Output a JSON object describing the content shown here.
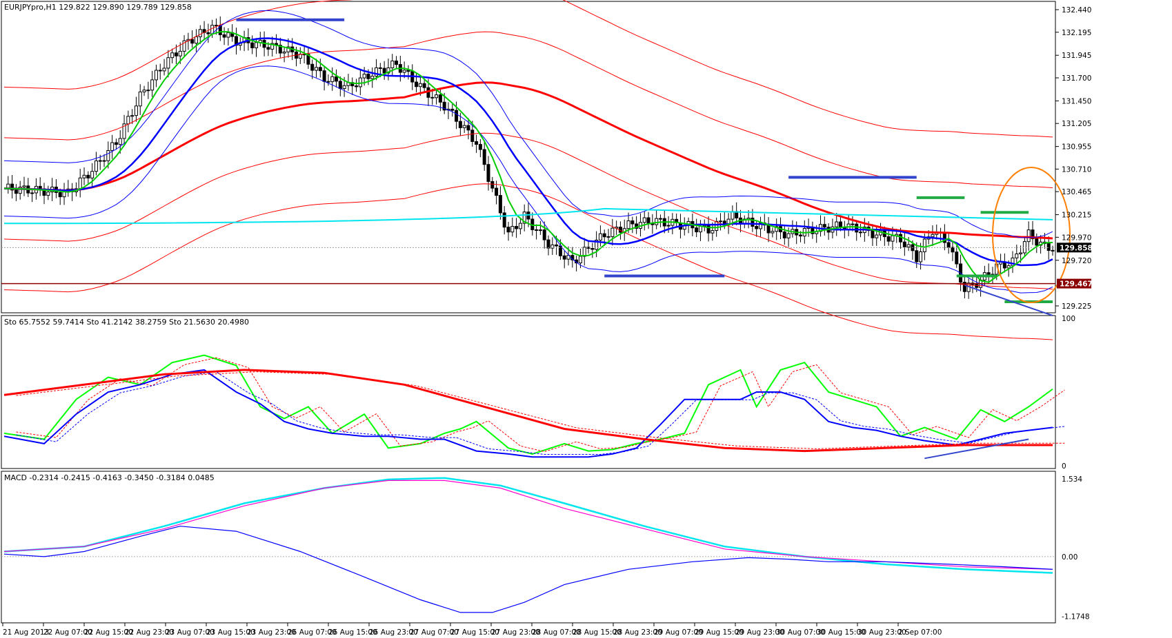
{
  "chart_data": [
    {
      "type": "candlestick",
      "title": "EURJPYpro,H1",
      "ohlc_header": "129.822 129.890 129.789 129.858",
      "price_axis_ticks": [
        "132.440",
        "132.195",
        "131.945",
        "131.700",
        "131.450",
        "131.205",
        "130.955",
        "130.710",
        "130.465",
        "130.215",
        "129.970",
        "129.720",
        "129.225"
      ],
      "ylim": [
        129.18,
        132.5
      ],
      "current_price": "129.858",
      "support_level": "129.467",
      "time_labels": [
        "21 Aug 2013",
        "22 Aug 07:00",
        "22 Aug 15:00",
        "22 Aug 23:00",
        "23 Aug 07:00",
        "23 Aug 15:00",
        "23 Aug 23:00",
        "26 Aug 07:00",
        "26 Aug 15:00",
        "26 Aug 23:00",
        "27 Aug 07:00",
        "27 Aug 15:00",
        "27 Aug 23:00",
        "28 Aug 07:00",
        "28 Aug 15:00",
        "28 Aug 23:00",
        "29 Aug 07:00",
        "29 Aug 15:00",
        "29 Aug 23:00",
        "30 Aug 07:00",
        "30 Aug 15:00",
        "30 Aug 23:00",
        "2 Sep 07:00"
      ],
      "close_path": [
        [
          0,
          130.5
        ],
        [
          8,
          130.48
        ],
        [
          16,
          130.45
        ],
        [
          22,
          130.7
        ],
        [
          28,
          131.0
        ],
        [
          34,
          131.5
        ],
        [
          40,
          131.85
        ],
        [
          46,
          132.1
        ],
        [
          52,
          132.25
        ],
        [
          58,
          132.1
        ],
        [
          66,
          132.05
        ],
        [
          74,
          131.95
        ],
        [
          80,
          131.7
        ],
        [
          86,
          131.6
        ],
        [
          92,
          131.75
        ],
        [
          98,
          131.85
        ],
        [
          104,
          131.6
        ],
        [
          110,
          131.4
        ],
        [
          114,
          131.2
        ],
        [
          118,
          131.0
        ],
        [
          122,
          130.5
        ],
        [
          126,
          130.0
        ],
        [
          130,
          130.2
        ],
        [
          136,
          129.9
        ],
        [
          142,
          129.7
        ],
        [
          146,
          129.85
        ],
        [
          150,
          130.0
        ],
        [
          156,
          130.1
        ],
        [
          162,
          130.15
        ],
        [
          170,
          130.1
        ],
        [
          176,
          130.05
        ],
        [
          182,
          130.2
        ],
        [
          188,
          130.1
        ],
        [
          196,
          130.0
        ],
        [
          202,
          130.05
        ],
        [
          210,
          130.1
        ],
        [
          218,
          130.0
        ],
        [
          224,
          129.95
        ],
        [
          228,
          129.75
        ],
        [
          232,
          130.05
        ],
        [
          236,
          129.9
        ],
        [
          240,
          129.4
        ],
        [
          244,
          129.5
        ],
        [
          248,
          129.65
        ],
        [
          252,
          129.7
        ],
        [
          256,
          130.0
        ],
        [
          260,
          129.86
        ]
      ],
      "annotations": [
        "horizontal support/resistance markers (blue, green)",
        "descending trendline at lows",
        "orange ellipse highlighting latest candles"
      ]
    },
    {
      "type": "line",
      "title": "Sto 65.7552 59.7414  Sto 41.2142 38.2759  Sto 21.5630 20.4980",
      "ylim": [
        0,
        100
      ],
      "y_ticks": [
        "100",
        "0"
      ],
      "series": [
        {
          "color": "#00ff00",
          "values": [
            [
              0,
              22
            ],
            [
              10,
              18
            ],
            [
              18,
              45
            ],
            [
              26,
              60
            ],
            [
              34,
              55
            ],
            [
              42,
              70
            ],
            [
              50,
              75
            ],
            [
              58,
              68
            ],
            [
              64,
              40
            ],
            [
              70,
              32
            ],
            [
              76,
              40
            ],
            [
              82,
              22
            ],
            [
              90,
              35
            ],
            [
              96,
              12
            ],
            [
              104,
              15
            ],
            [
              110,
              22
            ],
            [
              114,
              25
            ],
            [
              118,
              30
            ],
            [
              126,
              12
            ],
            [
              132,
              8
            ],
            [
              140,
              15
            ],
            [
              146,
              10
            ],
            [
              152,
              11
            ],
            [
              158,
              15
            ],
            [
              164,
              18
            ],
            [
              170,
              22
            ],
            [
              176,
              55
            ],
            [
              184,
              65
            ],
            [
              188,
              40
            ],
            [
              194,
              65
            ],
            [
              200,
              70
            ],
            [
              206,
              50
            ],
            [
              212,
              45
            ],
            [
              218,
              40
            ],
            [
              224,
              20
            ],
            [
              230,
              26
            ],
            [
              238,
              18
            ],
            [
              244,
              38
            ],
            [
              250,
              30
            ],
            [
              256,
              40
            ],
            [
              262,
              52
            ]
          ]
        },
        {
          "color": "#0000ff",
          "values": [
            [
              0,
              20
            ],
            [
              10,
              15
            ],
            [
              18,
              35
            ],
            [
              26,
              50
            ],
            [
              34,
              55
            ],
            [
              42,
              62
            ],
            [
              50,
              65
            ],
            [
              58,
              50
            ],
            [
              64,
              42
            ],
            [
              70,
              30
            ],
            [
              76,
              25
            ],
            [
              82,
              22
            ],
            [
              90,
              20
            ],
            [
              96,
              20
            ],
            [
              104,
              18
            ],
            [
              110,
              18
            ],
            [
              118,
              10
            ],
            [
              126,
              8
            ],
            [
              132,
              6
            ],
            [
              140,
              6
            ],
            [
              146,
              6
            ],
            [
              152,
              8
            ],
            [
              158,
              12
            ],
            [
              164,
              28
            ],
            [
              170,
              45
            ],
            [
              176,
              45
            ],
            [
              184,
              45
            ],
            [
              188,
              50
            ],
            [
              194,
              50
            ],
            [
              200,
              45
            ],
            [
              206,
              30
            ],
            [
              212,
              26
            ],
            [
              218,
              24
            ],
            [
              224,
              20
            ],
            [
              230,
              17
            ],
            [
              238,
              14
            ],
            [
              244,
              18
            ],
            [
              250,
              22
            ],
            [
              256,
              24
            ],
            [
              262,
              26
            ]
          ]
        },
        {
          "color": "#ff0000",
          "values": [
            [
              0,
              48
            ],
            [
              20,
              55
            ],
            [
              40,
              62
            ],
            [
              60,
              65
            ],
            [
              80,
              63
            ],
            [
              100,
              55
            ],
            [
              120,
              40
            ],
            [
              140,
              25
            ],
            [
              160,
              18
            ],
            [
              180,
              12
            ],
            [
              200,
              10
            ],
            [
              220,
              12
            ],
            [
              240,
              14
            ],
            [
              262,
              14
            ]
          ]
        }
      ]
    },
    {
      "type": "line",
      "title": "MACD -0.2314 -0.2415 -0.4163 -0.3450 -0.3184 0.0485",
      "ylim": [
        -1.25,
        1.6
      ],
      "y_ticks": [
        "1.534",
        "0.00",
        "-1.1748"
      ],
      "series": [
        {
          "color": "#00e5ee",
          "values": [
            [
              0,
              0.1
            ],
            [
              20,
              0.2
            ],
            [
              40,
              0.6
            ],
            [
              60,
              1.05
            ],
            [
              80,
              1.35
            ],
            [
              96,
              1.52
            ],
            [
              110,
              1.55
            ],
            [
              124,
              1.4
            ],
            [
              140,
              1.05
            ],
            [
              160,
              0.6
            ],
            [
              180,
              0.2
            ],
            [
              200,
              0.0
            ],
            [
              220,
              -0.15
            ],
            [
              240,
              -0.25
            ],
            [
              262,
              -0.32
            ]
          ]
        },
        {
          "color": "#ff00cc",
          "values": [
            [
              0,
              0.1
            ],
            [
              20,
              0.2
            ],
            [
              40,
              0.55
            ],
            [
              60,
              1.0
            ],
            [
              80,
              1.35
            ],
            [
              96,
              1.5
            ],
            [
              110,
              1.5
            ],
            [
              124,
              1.35
            ],
            [
              140,
              0.95
            ],
            [
              160,
              0.55
            ],
            [
              180,
              0.15
            ],
            [
              200,
              0.0
            ],
            [
              220,
              -0.1
            ],
            [
              240,
              -0.2
            ],
            [
              262,
              -0.25
            ]
          ]
        },
        {
          "color": "#0000ff",
          "values": [
            [
              0,
              0.05
            ],
            [
              10,
              0.0
            ],
            [
              20,
              0.1
            ],
            [
              34,
              0.4
            ],
            [
              44,
              0.6
            ],
            [
              58,
              0.5
            ],
            [
              74,
              0.1
            ],
            [
              90,
              -0.4
            ],
            [
              104,
              -0.85
            ],
            [
              114,
              -1.1
            ],
            [
              122,
              -1.1
            ],
            [
              130,
              -0.9
            ],
            [
              140,
              -0.55
            ],
            [
              156,
              -0.25
            ],
            [
              172,
              -0.1
            ],
            [
              186,
              -0.02
            ],
            [
              196,
              -0.05
            ],
            [
              206,
              -0.1
            ],
            [
              220,
              -0.1
            ],
            [
              236,
              -0.15
            ],
            [
              250,
              -0.2
            ],
            [
              262,
              -0.25
            ]
          ]
        }
      ]
    }
  ]
}
